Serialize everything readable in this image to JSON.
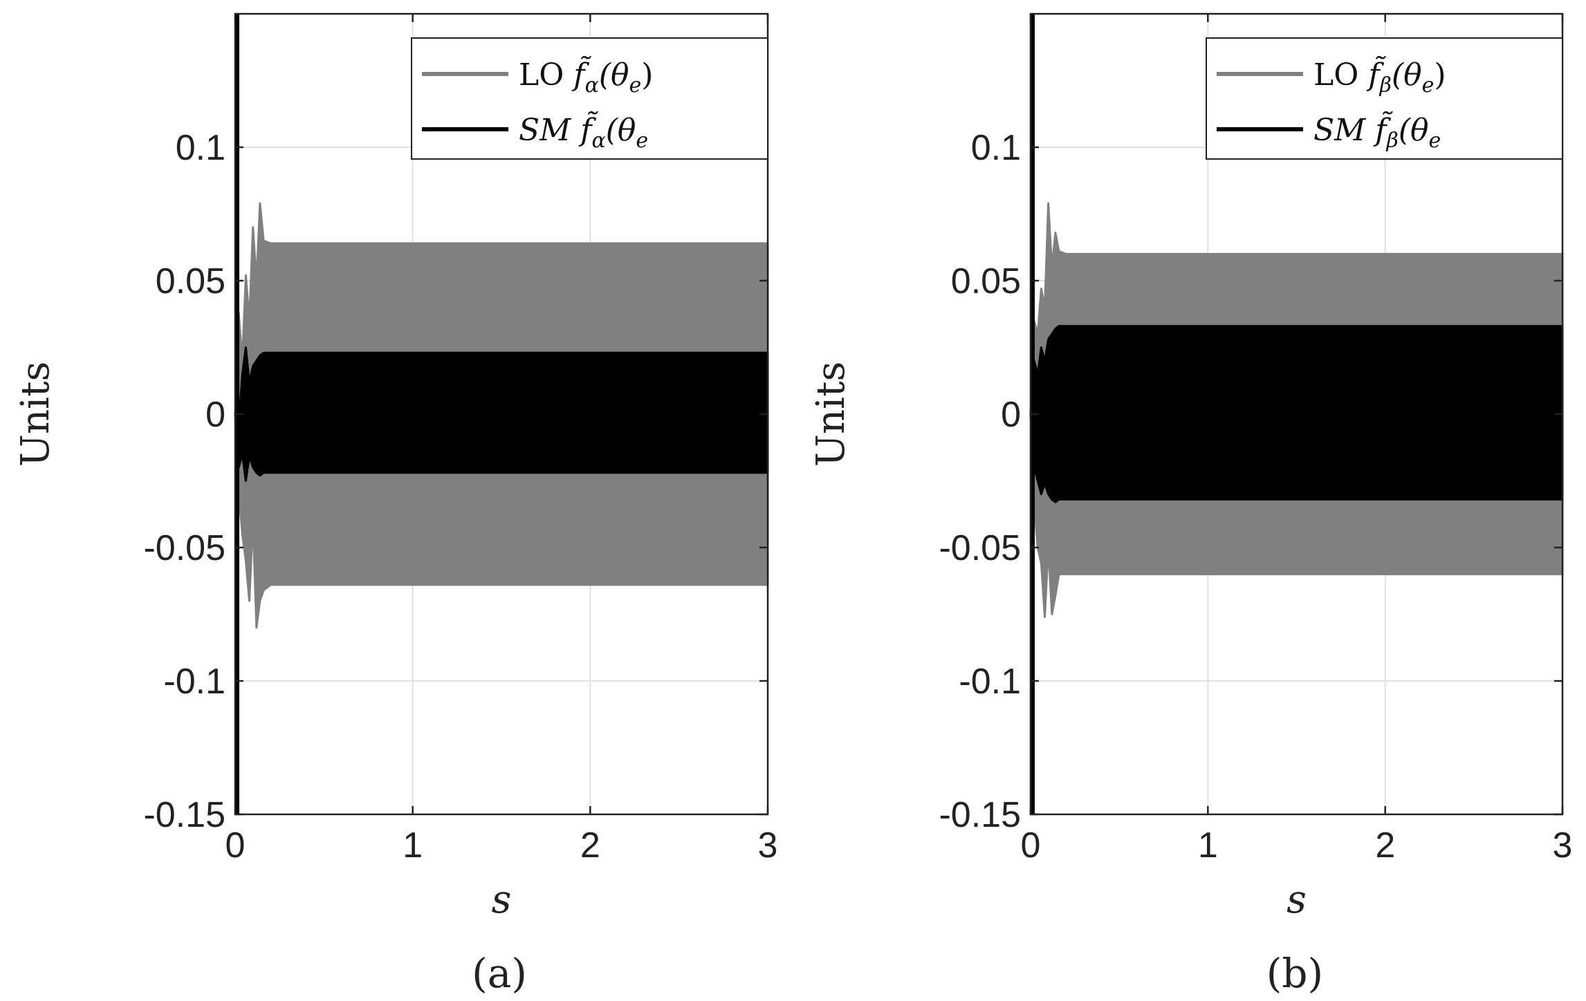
{
  "chart_data": [
    {
      "type": "line",
      "panel_label": "(a)",
      "xlabel": "s",
      "ylabel": "Units",
      "xlim": [
        0,
        3
      ],
      "ylim": [
        -0.15,
        0.15
      ],
      "xticks": [
        0,
        1,
        2,
        3
      ],
      "xtick_labels": [
        "0",
        "1",
        "2",
        "3"
      ],
      "yticks": [
        -0.15,
        -0.1,
        -0.05,
        0,
        0.05,
        0.1
      ],
      "ytick_labels": [
        "-0.15",
        "-0.1",
        "-0.05",
        "0",
        "0.05",
        "0.1"
      ],
      "grid": true,
      "legend_position": "top-right",
      "series": [
        {
          "name": "LO f̃α(θe)",
          "legend_main": "LO",
          "legend_sub": "α",
          "color": "#808080",
          "envelope": {
            "t": [
              0,
              0.02,
              0.04,
              0.06,
              0.08,
              0.1,
              0.12,
              0.14,
              0.16,
              0.2,
              3.0
            ],
            "upper": [
              0.0,
              0.038,
              0.02,
              0.052,
              0.035,
              0.07,
              0.05,
              0.079,
              0.065,
              0.064,
              0.064
            ],
            "lower": [
              0.0,
              -0.03,
              -0.045,
              -0.055,
              -0.07,
              -0.04,
              -0.08,
              -0.07,
              -0.066,
              -0.064,
              -0.064
            ]
          }
        },
        {
          "name": "SM f̃α(θe",
          "legend_main": "SM",
          "legend_sub": "α",
          "color": "#000000",
          "envelope": {
            "t": [
              0,
              0.02,
              0.04,
              0.06,
              0.08,
              0.1,
              0.12,
              0.14,
              0.16,
              0.2,
              3.0
            ],
            "upper": [
              0.0,
              -0.004,
              0.015,
              0.025,
              0.012,
              0.018,
              0.02,
              0.022,
              0.023,
              0.023,
              0.023
            ],
            "lower": [
              0.0,
              -0.02,
              -0.015,
              -0.025,
              -0.016,
              -0.02,
              -0.022,
              -0.023,
              -0.022,
              -0.022,
              -0.022
            ]
          }
        }
      ]
    },
    {
      "type": "line",
      "panel_label": "(b)",
      "xlabel": "s",
      "ylabel": "Units",
      "xlim": [
        0,
        3
      ],
      "ylim": [
        -0.15,
        0.15
      ],
      "xticks": [
        0,
        1,
        2,
        3
      ],
      "xtick_labels": [
        "0",
        "1",
        "2",
        "3"
      ],
      "yticks": [
        -0.15,
        -0.1,
        -0.05,
        0,
        0.05,
        0.1
      ],
      "ytick_labels": [
        "-0.15",
        "-0.1",
        "-0.05",
        "0",
        "0.05",
        "0.1"
      ],
      "grid": true,
      "legend_position": "top-right",
      "series": [
        {
          "name": "LO f̃β(θe)",
          "legend_main": "LO",
          "legend_sub": "β",
          "color": "#808080",
          "envelope": {
            "t": [
              0,
              0.02,
              0.04,
              0.06,
              0.08,
              0.1,
              0.12,
              0.14,
              0.16,
              0.2,
              3.0
            ],
            "upper": [
              0.0,
              0.035,
              0.03,
              0.047,
              0.04,
              0.079,
              0.055,
              0.068,
              0.061,
              0.06,
              0.06
            ],
            "lower": [
              0.0,
              -0.034,
              -0.05,
              -0.056,
              -0.076,
              -0.05,
              -0.075,
              -0.068,
              -0.06,
              -0.06,
              -0.06
            ]
          }
        },
        {
          "name": "SM f̃β(θe",
          "legend_main": "SM",
          "legend_sub": "β",
          "color": "#000000",
          "envelope": {
            "t": [
              0,
              0.02,
              0.04,
              0.06,
              0.08,
              0.1,
              0.12,
              0.14,
              0.16,
              0.2,
              3.0
            ],
            "upper": [
              0.0,
              0.02,
              0.015,
              0.025,
              0.02,
              0.028,
              0.03,
              0.032,
              0.033,
              0.033,
              0.033
            ],
            "lower": [
              0.0,
              -0.02,
              -0.025,
              -0.03,
              -0.026,
              -0.03,
              -0.032,
              -0.033,
              -0.032,
              -0.032,
              -0.032
            ]
          }
        }
      ]
    }
  ]
}
